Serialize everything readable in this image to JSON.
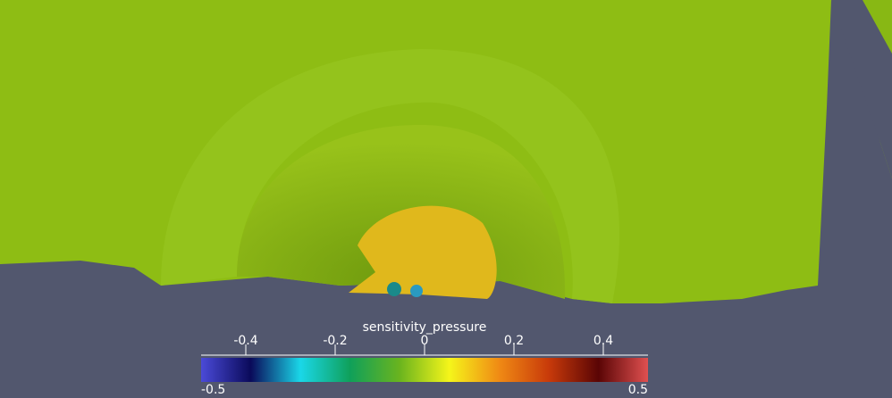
{
  "chart_data": {
    "type": "colorbar",
    "title": "sensitivity_pressure",
    "xlim": [
      -0.5,
      0.5
    ],
    "xticks": [
      -0.4,
      -0.2,
      0,
      0.2,
      0.4
    ],
    "colors": [
      "#4a4ad8",
      "#0a0a5a",
      "#1ad7e8",
      "#0fa05a",
      "#6ab41e",
      "#f5f51a",
      "#f08a14",
      "#c83a0a",
      "#5a0505",
      "#e05050"
    ]
  }
}
